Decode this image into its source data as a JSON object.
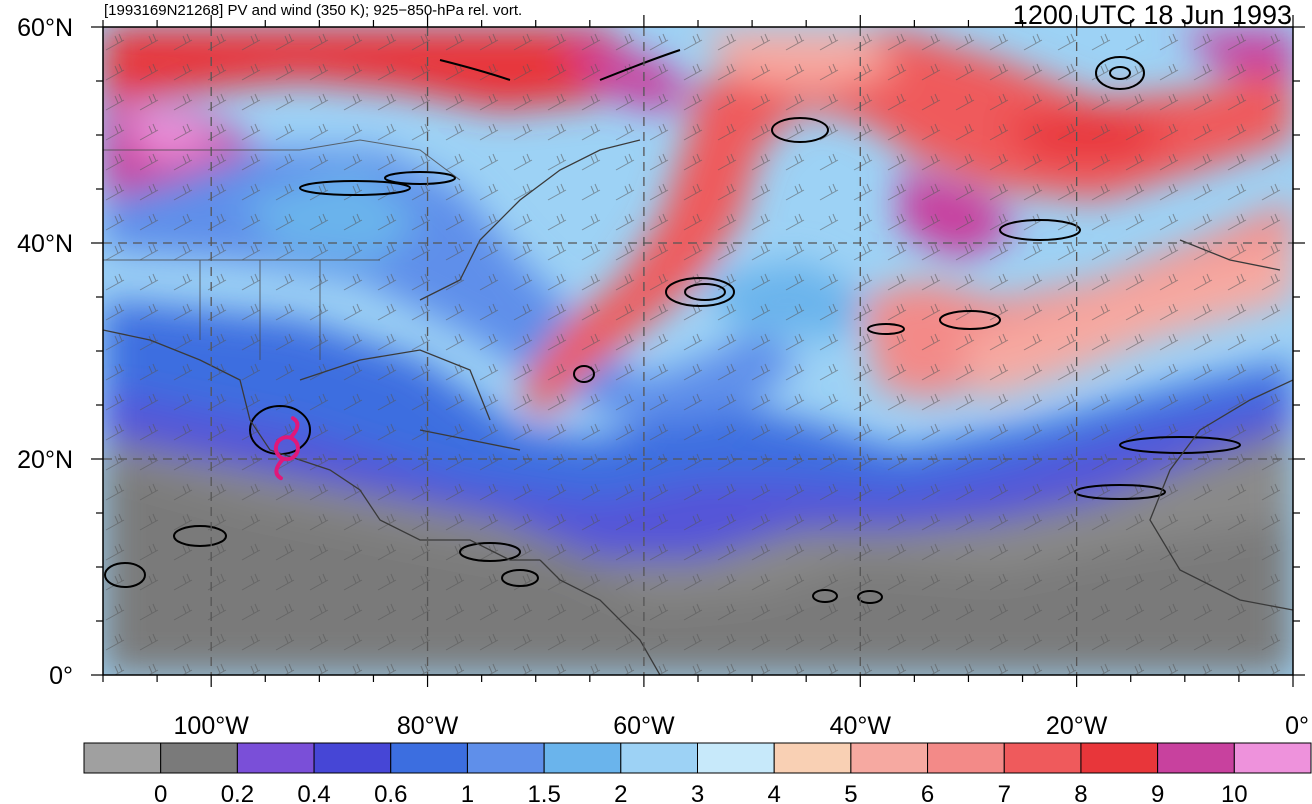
{
  "header": {
    "title": "[1993169N21268] PV and wind (350 K); 925−850-hPa rel. vort.",
    "datetime": "1200 UTC 18 Jun 1993"
  },
  "axes": {
    "lat_labels": [
      "60°N",
      "40°N",
      "20°N",
      "0°"
    ],
    "lat_values": [
      60,
      40,
      20,
      0
    ],
    "lon_labels": [
      "100°W",
      "80°W",
      "60°W",
      "40°W",
      "20°W",
      "0°"
    ],
    "lon_values": [
      -100,
      -80,
      -60,
      -40,
      -20,
      0
    ],
    "lon_range": [
      -110,
      0
    ],
    "lat_range": [
      0,
      60
    ],
    "gridlines": true
  },
  "colorbar": {
    "labels": [
      "0",
      "0.2",
      "0.4",
      "0.6",
      "1",
      "1.5",
      "2",
      "3",
      "4",
      "5",
      "6",
      "7",
      "8",
      "9",
      "10"
    ],
    "colors": [
      "#a0a0a0",
      "#7a7a7a",
      "#7a4fd8",
      "#4646d6",
      "#3c6ee0",
      "#5f8fea",
      "#6ab4ec",
      "#9dd2f5",
      "#c7e9fa",
      "#f9d0b4",
      "#f6a9a1",
      "#f38a88",
      "#ef5a5c",
      "#e8363a",
      "#c8419e",
      "#ee92dc"
    ]
  },
  "storm": {
    "name_icon": "tropical-cyclone-symbol-icon",
    "lon": -93,
    "lat": 21,
    "color": "#e0187a"
  }
}
